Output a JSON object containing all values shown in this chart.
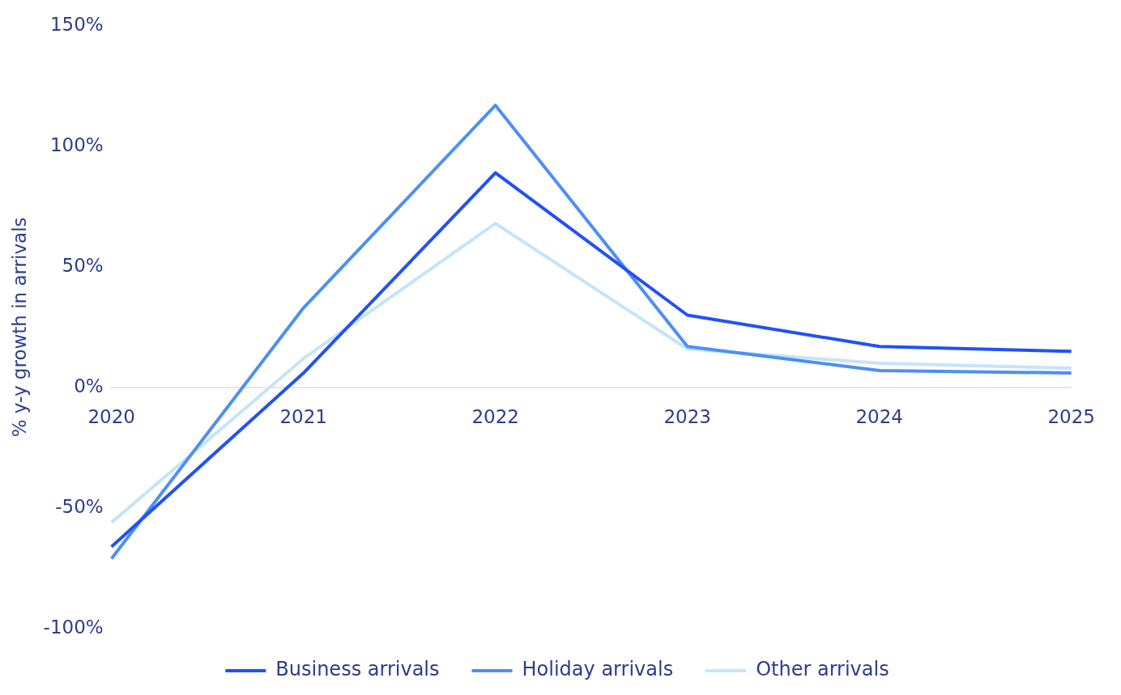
{
  "chart_data": {
    "type": "line",
    "ylabel": "% y-y growth in arrivals",
    "categories": [
      "2020",
      "2021",
      "2022",
      "2023",
      "2024",
      "2025"
    ],
    "series": [
      {
        "name": "Business arrivals",
        "color": "#2251f5",
        "values": [
          -66,
          6,
          89,
          30,
          17,
          15
        ]
      },
      {
        "name": "Holiday arrivals",
        "color": "#4d8ff5",
        "values": [
          -71,
          33,
          117,
          17,
          7,
          6
        ]
      },
      {
        "name": "Other arrivals",
        "color": "#c4e4fb",
        "values": [
          -56,
          12,
          68,
          16,
          10,
          8
        ]
      }
    ],
    "ylim": [
      -100,
      150
    ],
    "yticks": [
      {
        "value": -100,
        "label": "-100%"
      },
      {
        "value": -50,
        "label": "-50%"
      },
      {
        "value": 0,
        "label": "0%"
      },
      {
        "value": 50,
        "label": "50%"
      },
      {
        "value": 100,
        "label": "100%"
      },
      {
        "value": 150,
        "label": "150%"
      }
    ],
    "grid": false,
    "legend": "bottom",
    "marker": "none",
    "line_style": "solid"
  }
}
